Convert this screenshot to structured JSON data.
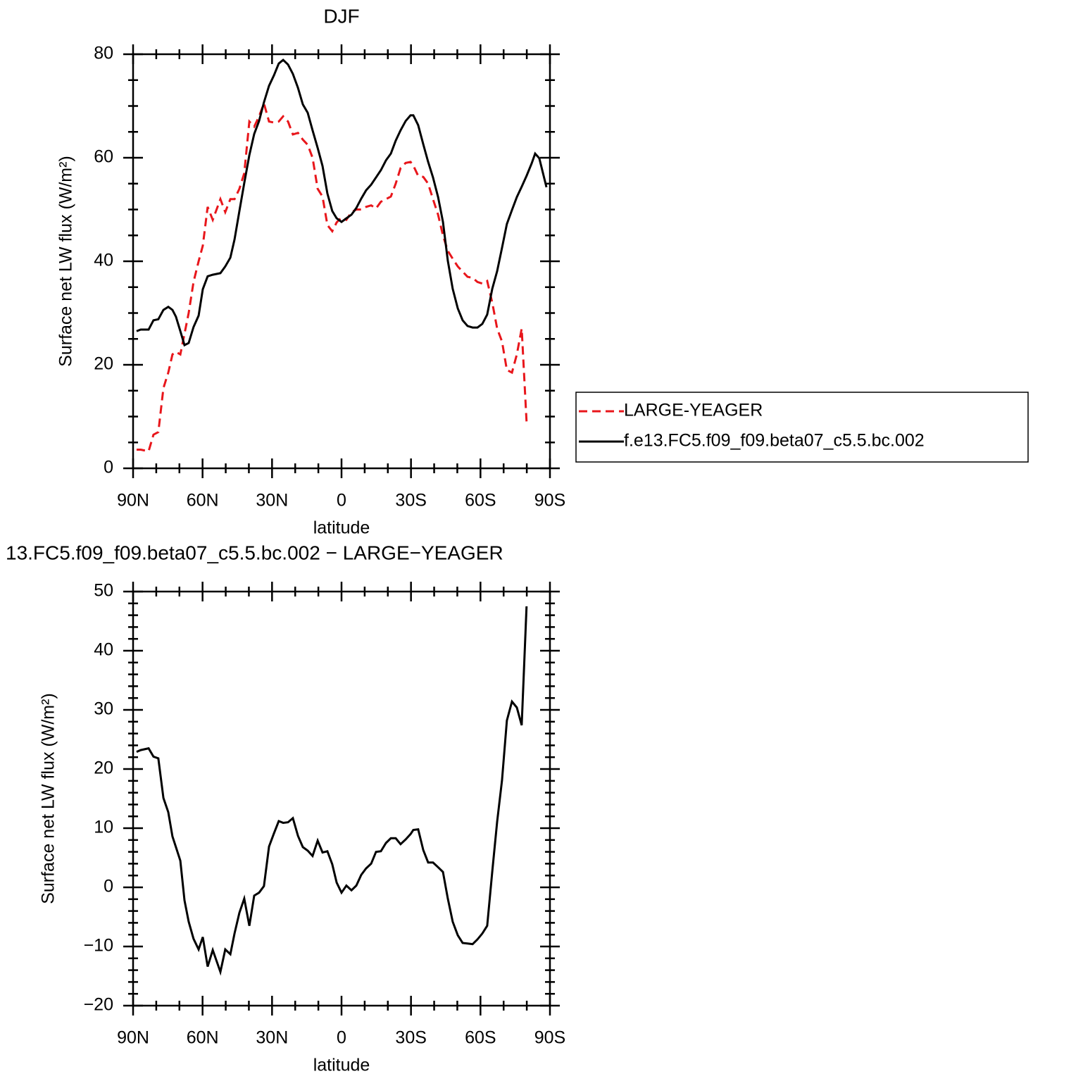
{
  "chart_data": [
    {
      "type": "line",
      "title": "DJF",
      "xlabel": "latitude",
      "ylabel": "Surface net LW flux (W/m²)",
      "x": [
        88.5,
        86.7,
        83.3,
        81.2,
        79.1,
        76.9,
        74.8,
        73.0,
        71.5,
        69.6,
        67.8,
        66.0,
        63.9,
        61.7,
        59.9,
        57.8,
        55.6,
        52.3,
        50.2,
        48.0,
        46.2,
        44.1,
        42.0,
        39.8,
        37.7,
        35.6,
        33.5,
        31.3,
        29.2,
        27.1,
        25.2,
        23.1,
        21.0,
        18.8,
        16.7,
        14.6,
        12.5,
        10.3,
        8.2,
        6.1,
        4.0,
        2.1,
        0.0,
        -2.1,
        -4.3,
        -6.4,
        -8.5,
        -10.6,
        -12.8,
        -14.9,
        -17.0,
        -19.2,
        -21.3,
        -23.4,
        -25.5,
        -27.7,
        -29.8,
        -31.0,
        -33.1,
        -35.3,
        -37.4,
        -39.5,
        -41.7,
        -43.8,
        -45.9,
        -48.0,
        -50.2,
        -52.3,
        -54.4,
        -56.6,
        -58.7,
        -60.8,
        -62.9,
        -65.1,
        -67.2,
        -69.3,
        -71.4,
        -73.6,
        -75.7,
        -77.8,
        -79.9,
        -82.1,
        -83.6,
        -85.4,
        -88.5
      ],
      "series": [
        {
          "name": "LARGE-YEAGER",
          "color": "#e8161b",
          "dashed": true,
          "values": [
            3.6,
            3.6,
            3.3,
            6.5,
            7,
            15.5,
            18.5,
            22,
            22.5,
            22,
            26,
            30,
            36,
            40,
            43,
            50.5,
            48,
            52,
            49.5,
            52,
            52,
            54,
            57,
            67,
            66,
            68,
            70.5,
            67,
            66.8,
            67,
            68,
            67,
            64.5,
            64.8,
            63.5,
            62.5,
            60,
            54,
            52.5,
            47,
            45.8,
            47.5,
            48.5,
            48,
            49.5,
            50,
            50,
            50.5,
            50.8,
            50.2,
            51.5,
            52,
            52.5,
            55,
            58,
            59,
            59.2,
            58.5,
            56.5,
            56.3,
            55,
            52,
            49,
            45,
            42,
            40.5,
            39,
            38,
            37,
            36.8,
            36,
            35.7,
            36.2,
            32,
            27,
            24.5,
            19,
            18.5,
            22,
            27,
            9,
            null,
            null,
            null,
            null
          ]
        },
        {
          "name": "f.e13.FC5.f09_f09.beta07_c5.5.bc.002",
          "color": "#000000",
          "dashed": false,
          "values": [
            26.5,
            26.8,
            26.8,
            28.6,
            28.8,
            30.6,
            31.2,
            30.6,
            29.3,
            26.5,
            23.8,
            24.2,
            27.3,
            29.5,
            34.6,
            37.1,
            37.4,
            37.7,
            39.0,
            40.7,
            44.2,
            49.7,
            55.1,
            60.5,
            64.6,
            67.1,
            70.7,
            73.9,
            75.9,
            78.2,
            78.9,
            78.0,
            76.2,
            73.5,
            70.3,
            68.7,
            65.3,
            61.9,
            58.4,
            53.1,
            49.7,
            48.3,
            47.6,
            48.3,
            49.0,
            50.3,
            52.1,
            53.7,
            54.8,
            56.2,
            57.6,
            59.5,
            60.8,
            63.3,
            65.3,
            67.1,
            68.2,
            68.2,
            66.3,
            62.6,
            59.2,
            56.2,
            52.4,
            47.6,
            40.1,
            34.7,
            30.9,
            28.6,
            27.5,
            27.2,
            27.2,
            27.9,
            29.7,
            34.7,
            38.1,
            42.6,
            47.2,
            49.9,
            52.4,
            54.4,
            56.5,
            58.9,
            60.8,
            59.9,
            54.3
          ]
        }
      ],
      "xlim": [
        90,
        -90
      ],
      "xticks": [
        {
          "value": 90,
          "label": "90N"
        },
        {
          "value": 60,
          "label": "60N"
        },
        {
          "value": 30,
          "label": "30N"
        },
        0,
        {
          "value": -30,
          "label": "30S"
        },
        {
          "value": -60,
          "label": "60S"
        },
        {
          "value": -90,
          "label": "90S"
        }
      ],
      "xminor": 3,
      "ylim": [
        0,
        80
      ],
      "yticks": [
        0,
        20,
        40,
        60,
        80
      ],
      "yminor": 4,
      "legend": "outside-right"
    },
    {
      "type": "line",
      "title": "13.FC5.f09_f09.beta07_c5.5.bc.002 − LARGE−YEAGER",
      "xlabel": "latitude",
      "ylabel": "Surface net LW flux (W/m²)",
      "x": [
        88.5,
        86.7,
        83.3,
        81.2,
        79.1,
        76.9,
        74.8,
        73.0,
        71.5,
        69.6,
        67.8,
        66.0,
        63.9,
        61.7,
        59.9,
        57.8,
        55.6,
        52.3,
        50.2,
        48.0,
        46.2,
        44.1,
        42.0,
        39.8,
        37.7,
        35.6,
        33.5,
        31.3,
        29.2,
        27.1,
        25.2,
        23.1,
        21.0,
        18.8,
        16.7,
        14.6,
        12.5,
        10.3,
        8.2,
        6.1,
        4.0,
        2.1,
        0.0,
        -2.1,
        -4.3,
        -6.4,
        -8.5,
        -10.6,
        -12.8,
        -14.9,
        -17.0,
        -19.2,
        -21.3,
        -23.4,
        -25.5,
        -27.7,
        -29.8,
        -31.0,
        -33.1,
        -35.3,
        -37.4,
        -39.5,
        -41.7,
        -43.8,
        -45.9,
        -48.0,
        -50.2,
        -52.3,
        -54.4,
        -56.6,
        -58.7,
        -60.8,
        -62.9,
        -65.1,
        -67.2,
        -69.3,
        -71.4,
        -73.6,
        -75.7,
        -77.8,
        -79.9,
        -82.1,
        -83.6,
        -85.4,
        -88.5
      ],
      "values": [
        22.9,
        23.2,
        23.5,
        22.1,
        21.8,
        15.1,
        12.7,
        8.6,
        6.8,
        4.5,
        -2.2,
        -5.8,
        -8.7,
        -10.5,
        -8.4,
        -13.4,
        -10.6,
        -14.3,
        -10.5,
        -11.3,
        -7.8,
        -4.3,
        -1.9,
        -6.5,
        -1.4,
        -0.9,
        0.2,
        6.9,
        9.1,
        11.2,
        10.9,
        11.0,
        11.7,
        8.7,
        6.8,
        6.2,
        5.3,
        7.9,
        5.9,
        6.1,
        3.9,
        0.8,
        -0.9,
        0.3,
        -0.5,
        0.3,
        2.1,
        3.2,
        4.0,
        6.0,
        6.1,
        7.5,
        8.3,
        8.3,
        7.3,
        8.1,
        9.0,
        9.7,
        9.8,
        6.3,
        4.2,
        4.2,
        3.4,
        2.6,
        -1.9,
        -5.8,
        -8.1,
        -9.4,
        -9.5,
        -9.6,
        -8.8,
        -7.8,
        -6.5,
        2.7,
        11.1,
        18.1,
        28.2,
        31.4,
        30.4,
        27.4,
        47.5,
        null,
        null,
        null,
        null
      ],
      "color": "#000000",
      "xlim": [
        90,
        -90
      ],
      "xticks": [
        {
          "value": 90,
          "label": "90N"
        },
        {
          "value": 60,
          "label": "60N"
        },
        {
          "value": 30,
          "label": "30N"
        },
        0,
        {
          "value": -30,
          "label": "30S"
        },
        {
          "value": -60,
          "label": "60S"
        },
        {
          "value": -90,
          "label": "90S"
        }
      ],
      "xminor": 3,
      "ylim": [
        -20,
        50
      ],
      "yticks": [
        {
          "value": -20,
          "label": "−20"
        },
        {
          "value": -10,
          "label": "−10"
        },
        0,
        10,
        20,
        30,
        40,
        50
      ],
      "yminor": 5
    }
  ]
}
